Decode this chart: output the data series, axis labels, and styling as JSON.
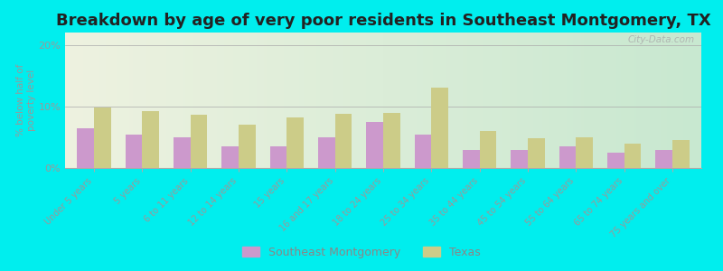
{
  "title": "Breakdown by age of very poor residents in Southeast Montgomery, TX",
  "ylabel": "% below half of\npoverty level",
  "categories": [
    "Under 5 years",
    "5 years",
    "6 to 11 years",
    "12 to 14 years",
    "15 years",
    "16 and 17 years",
    "18 to 24 years",
    "25 to 34 years",
    "35 to 44 years",
    "45 to 54 years",
    "55 to 64 years",
    "65 to 74 years",
    "75 years and over"
  ],
  "southeast_montgomery": [
    6.5,
    5.5,
    5.0,
    3.5,
    3.5,
    5.0,
    7.5,
    5.5,
    3.0,
    3.0,
    3.5,
    2.5,
    3.0
  ],
  "texas": [
    9.8,
    9.2,
    8.7,
    7.0,
    8.2,
    8.8,
    9.0,
    13.0,
    6.0,
    4.8,
    5.0,
    4.0,
    4.5
  ],
  "sm_color": "#cc99cc",
  "tx_color": "#cccc88",
  "bg_color": "#00eeee",
  "plot_bg_top": "#eef2e0",
  "plot_bg_bottom": "#c8e8d0",
  "ylim": [
    0,
    22
  ],
  "yticks": [
    0,
    10,
    20
  ],
  "ytick_labels": [
    "0%",
    "10%",
    "20%"
  ],
  "legend_labels": [
    "Southeast Montgomery",
    "Texas"
  ],
  "title_fontsize": 13,
  "watermark": "City-Data.com"
}
